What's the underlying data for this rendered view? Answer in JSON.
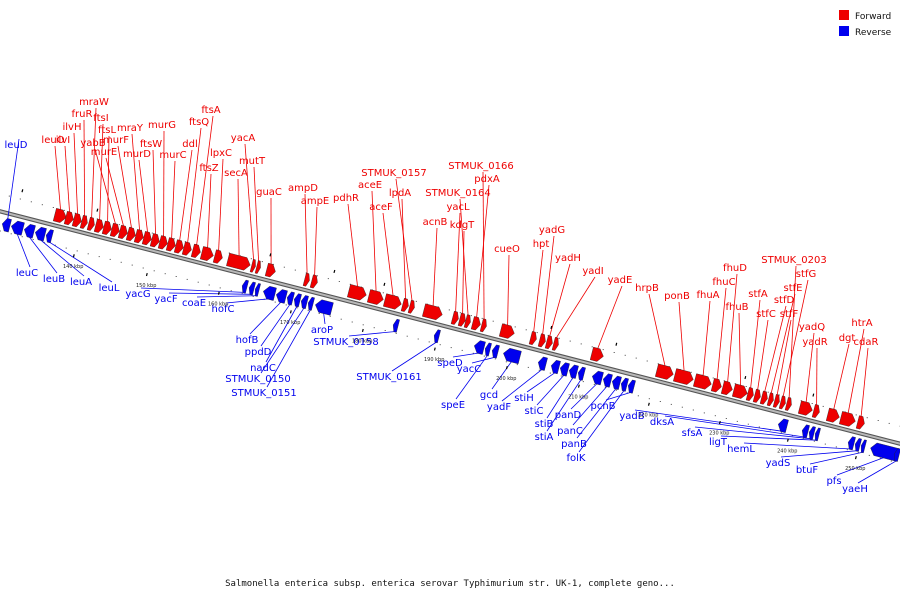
{
  "legend": [
    {
      "label": "Forward",
      "color": "#ee0000"
    },
    {
      "label": "Reverse",
      "color": "#0000ee"
    }
  ],
  "colors": {
    "forward": "#ee0000",
    "reverse": "#0000ee",
    "backbone": "#888888"
  },
  "caption": "Salmonella enterica subsp. enterica serovar Typhimurium str. UK-1, complete geno...",
  "tick_labels": [
    "140 kbp",
    "150 kbp",
    "160 kbp",
    "170 kbp",
    "180 kbp",
    "190 kbp",
    "200 kbp",
    "210 kbp",
    "220 kbp",
    "230 kbp",
    "240 kbp",
    "250 kbp"
  ],
  "forward_genes": [
    "leuO",
    "ilvI",
    "ilvH",
    "fruR",
    "mraW",
    "ftsI",
    "ftsL",
    "yabB",
    "murE",
    "murF",
    "mraY",
    "murD",
    "ftsW",
    "murG",
    "murC",
    "ddl",
    "ftsQ",
    "ftsA",
    "ftsZ",
    "lpxC",
    "secA",
    "yacA",
    "mutT",
    "guaC",
    "ampD",
    "ampE",
    "pdhR",
    "aceE",
    "aceF",
    "lpdA",
    "STMUK_0157",
    "acnB",
    "yacL",
    "kdgT",
    "STMUK_0164",
    "pdxA",
    "STMUK_0166",
    "cueO",
    "hpt",
    "yadG",
    "yadH",
    "yadI",
    "yadE",
    "hrpB",
    "ponB",
    "fhuA",
    "fhuC",
    "fhuD",
    "fhuB",
    "stfA",
    "stfC",
    "stfD",
    "stfE",
    "stfF",
    "stfG",
    "STMUK_0203",
    "yadQ",
    "yadR",
    "dgt",
    "htrA",
    "cdaR"
  ],
  "reverse_genes": [
    "leuD",
    "leuC",
    "leuB",
    "leuA",
    "leuL",
    "yacG",
    "yacF",
    "coaE",
    "hofC",
    "hofB",
    "ppdD",
    "nadC",
    "STMUK_0150",
    "STMUK_0151",
    "aroP",
    "STMUK_0158",
    "STMUK_0161",
    "speD",
    "speE",
    "yacC",
    "gcd",
    "yadF",
    "stiH",
    "stiC",
    "stiB",
    "stiA",
    "panD",
    "panC",
    "panB",
    "folK",
    "pcnB",
    "yadB",
    "dksA",
    "sfsA",
    "ligT",
    "hemL",
    "yadS",
    "btuF",
    "pfs",
    "yaeH"
  ]
}
